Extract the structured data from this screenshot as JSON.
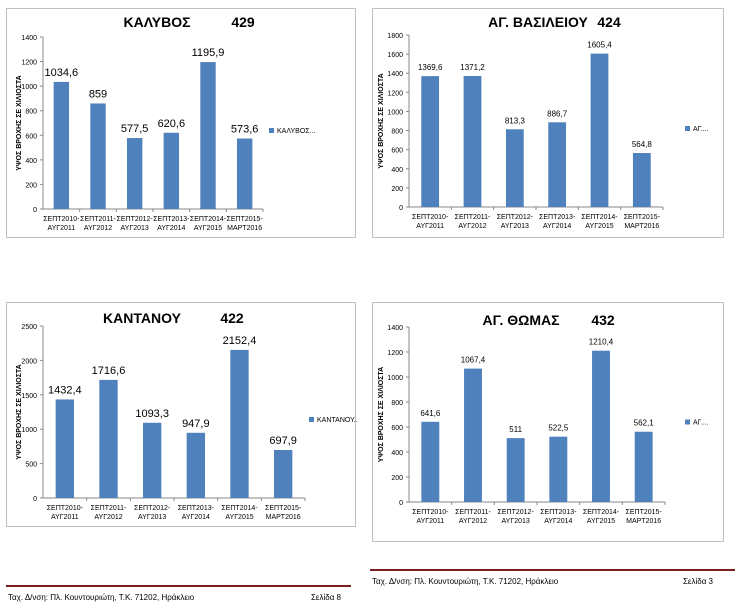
{
  "chart_data": [
    {
      "type": "bar",
      "title": "ΚΑΛΥΒΟΣ",
      "station_code": "429",
      "ylabel": "ΥΨΟΣ ΒΡΟΧΗΣ ΣΕ ΧΙΛΙΟΣΤΑ",
      "xlabel": "",
      "legend": "ΚΑΛΥΒΟΣ...",
      "categories": [
        [
          "ΣΕΠΤ2010-",
          "ΑΥΓ2011"
        ],
        [
          "ΣΕΠΤ2011-",
          "ΑΥΓ2012"
        ],
        [
          "ΣΕΠΤ2012-",
          "ΑΥΓ2013"
        ],
        [
          "ΣΕΠΤ2013-",
          "ΑΥΓ2014"
        ],
        [
          "ΣΕΠΤ2014-",
          "ΑΥΓ2015"
        ],
        [
          "ΣΕΠΤ2015-",
          "ΜΑΡΤ2016"
        ]
      ],
      "values": [
        1034.6,
        859,
        577.5,
        620.6,
        1195.9,
        573.6
      ],
      "value_labels": [
        "1034,6",
        "859",
        "577,5",
        "620,6",
        "1195,9",
        "573,6"
      ],
      "ylim": [
        0,
        1400
      ],
      "yticks": [
        0,
        200,
        400,
        600,
        800,
        1000,
        1200,
        1400
      ],
      "bar_color": "#4f81bd"
    },
    {
      "type": "bar",
      "title": "ΑΓ. ΒΑΣΙΛΕΙΟΥ",
      "station_code": "424",
      "ylabel": "ΥΨΟΣ ΒΡΟΧΗΣ ΣΕ ΧΙΛΙΟΣΤΑ",
      "xlabel": "",
      "legend": "ΑΓ....",
      "categories": [
        [
          "ΣΕΠΤ2010-",
          "ΑΥΓ2011"
        ],
        [
          "ΣΕΠΤ2011-",
          "ΑΥΓ2012"
        ],
        [
          "ΣΕΠΤ2012-",
          "ΑΥΓ2013"
        ],
        [
          "ΣΕΠΤ2013-",
          "ΑΥΓ2014"
        ],
        [
          "ΣΕΠΤ2014-",
          "ΑΥΓ2015"
        ],
        [
          "ΣΕΠΤ2015-",
          "ΜΑΡΤ2016"
        ]
      ],
      "values": [
        1369.6,
        1371.2,
        813.3,
        886.7,
        1605.4,
        564.8
      ],
      "value_labels": [
        "1369,6",
        "1371,2",
        "813,3",
        "886,7",
        "1605,4",
        "564,8"
      ],
      "ylim": [
        0,
        1800
      ],
      "yticks": [
        0,
        200,
        400,
        600,
        800,
        1000,
        1200,
        1400,
        1600,
        1800
      ],
      "bar_color": "#4f81bd"
    },
    {
      "type": "bar",
      "title": "ΚΑΝΤΑΝΟΥ",
      "station_code": "422",
      "ylabel": "ΥΨΟΣ ΒΡΟΧΗΣ ΣΕ ΧΙΛΙΟΣΤΑ",
      "xlabel": "",
      "legend": "ΚΑΝΤΑΝΟΥ...",
      "categories": [
        [
          "ΣΕΠΤ2010-",
          "ΑΥΓ2011"
        ],
        [
          "ΣΕΠΤ2011-",
          "ΑΥΓ2012"
        ],
        [
          "ΣΕΠΤ2012-",
          "ΑΥΓ2013"
        ],
        [
          "ΣΕΠΤ2013-",
          "ΑΥΓ2014"
        ],
        [
          "ΣΕΠΤ2014-",
          "ΑΥΓ2015"
        ],
        [
          "ΣΕΠΤ2015-",
          "ΜΑΡΤ2016"
        ]
      ],
      "values": [
        1432.4,
        1716.6,
        1093.3,
        947.9,
        2152.4,
        697.9
      ],
      "value_labels": [
        "1432,4",
        "1716,6",
        "1093,3",
        "947,9",
        "2152,4",
        "697,9"
      ],
      "ylim": [
        0,
        2500
      ],
      "yticks": [
        0,
        500,
        1000,
        1500,
        2000,
        2500
      ],
      "bar_color": "#4f81bd"
    },
    {
      "type": "bar",
      "title": "ΑΓ. ΘΩΜΑΣ",
      "station_code": "432",
      "ylabel": "ΥΨΟΣ ΒΡΟΧΗΣ ΣΕ ΧΙΛΙΟΣΤΑ",
      "xlabel": "",
      "legend": "ΑΓ....",
      "categories": [
        [
          "ΣΕΠΤ2010-",
          "ΑΥΓ2011"
        ],
        [
          "ΣΕΠΤ2011-",
          "ΑΥΓ2012"
        ],
        [
          "ΣΕΠΤ2012-",
          "ΑΥΓ2013"
        ],
        [
          "ΣΕΠΤ2013-",
          "ΑΥΓ2014"
        ],
        [
          "ΣΕΠΤ2014-",
          "ΑΥΓ2015"
        ],
        [
          "ΣΕΠΤ2015-",
          "ΜΑΡΤ2016"
        ]
      ],
      "values": [
        641.6,
        1067.4,
        511,
        522.5,
        1210.4,
        562.1
      ],
      "value_labels": [
        "641,6",
        "1067,4",
        "511",
        "522,5",
        "1210,4",
        "562,1"
      ],
      "ylim": [
        0,
        1400
      ],
      "yticks": [
        0,
        200,
        400,
        600,
        800,
        1000,
        1200,
        1400
      ],
      "bar_color": "#4f81bd"
    }
  ],
  "footers": [
    {
      "address": "Ταχ. Δ/νση: Πλ. Κουντουριώτη, Τ.Κ. 71202, Ηράκλειο",
      "page": "Σελίδα 8"
    },
    {
      "address": "Ταχ. Δ/νση: Πλ. Κουντουριώτη, Τ.Κ. 71202, Ηράκλειο",
      "page": "Σελίδα 3"
    }
  ]
}
